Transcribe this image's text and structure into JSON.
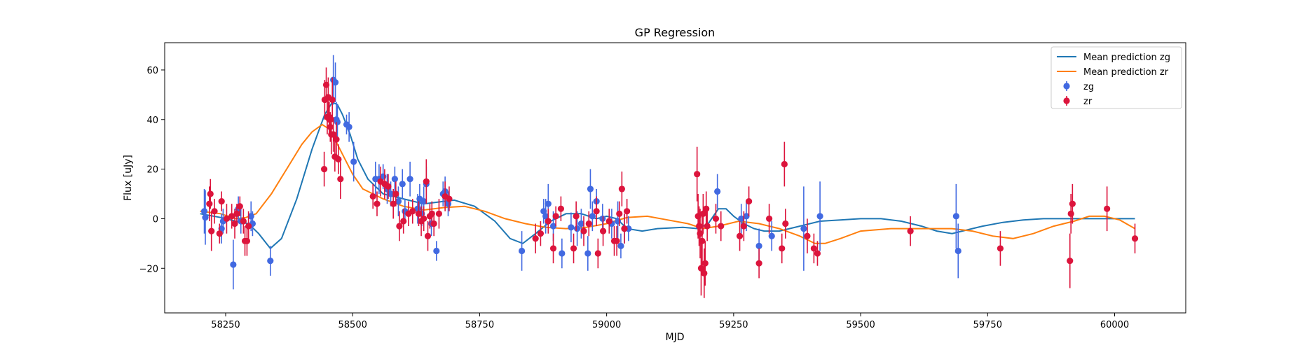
{
  "chart_data": {
    "type": "scatter",
    "title": "GP Regression",
    "xlabel": "MJD",
    "ylabel": "Flux [uJy]",
    "xlim": [
      58130,
      60140
    ],
    "ylim": [
      -38,
      71
    ],
    "xticks": [
      58250,
      58500,
      58750,
      59000,
      59250,
      59500,
      59750,
      60000
    ],
    "yticks": [
      -20,
      0,
      20,
      40,
      60
    ],
    "grid": false,
    "legend_position": "top-right",
    "colors": {
      "zg_line": "#1f77b4",
      "zr_line": "#ff7f0e",
      "zg_points": "#4169e1",
      "zr_points": "#dc143c"
    },
    "legend": [
      {
        "label": "Mean prediction zg",
        "kind": "line",
        "color": "#1f77b4"
      },
      {
        "label": "Mean prediction zr",
        "kind": "line",
        "color": "#ff7f0e"
      },
      {
        "label": "zg",
        "kind": "errorbar",
        "color": "#4169e1"
      },
      {
        "label": "zr",
        "kind": "errorbar",
        "color": "#dc143c"
      }
    ],
    "series": [
      {
        "name": "Mean prediction zg",
        "kind": "line",
        "color": "#1f77b4",
        "x": [
          58200,
          58240,
          58270,
          58295,
          58315,
          58338,
          58360,
          58390,
          58420,
          58445,
          58460,
          58470,
          58480,
          58495,
          58510,
          58530,
          58560,
          58600,
          58640,
          58680,
          58700,
          58740,
          58780,
          58810,
          58835,
          58860,
          58890,
          58920,
          58950,
          58980,
          59000,
          59020,
          59040,
          59070,
          59100,
          59150,
          59180,
          59200,
          59220,
          59235,
          59250,
          59270,
          59290,
          59310,
          59340,
          59380,
          59420,
          59460,
          59500,
          59540,
          59580,
          59620,
          59650,
          59680,
          59700,
          59740,
          59780,
          59820,
          59860,
          59900,
          59950,
          60000,
          60040
        ],
        "y": [
          2,
          0.5,
          -1,
          -2,
          -6,
          -12,
          -8,
          8,
          28,
          42,
          47,
          46,
          42,
          34,
          24,
          16,
          10,
          8,
          6,
          7,
          7.5,
          5,
          -1,
          -8,
          -10,
          -6,
          -1,
          2,
          2,
          0,
          1,
          0,
          -4,
          -5,
          -4,
          -3.5,
          -4,
          -2,
          4,
          4,
          1,
          -2,
          -4,
          -5,
          -5,
          -3,
          -1,
          -0.5,
          0,
          0,
          -1,
          -3,
          -5,
          -6,
          -5,
          -3,
          -1.5,
          -0.5,
          0,
          0,
          0,
          0,
          0
        ]
      },
      {
        "name": "Mean prediction zr",
        "kind": "line",
        "color": "#ff7f0e",
        "x": [
          58200,
          58240,
          58270,
          58290,
          58310,
          58340,
          58370,
          58400,
          58420,
          58440,
          58455,
          58470,
          58485,
          58500,
          58520,
          58560,
          58600,
          58640,
          58680,
          58720,
          58760,
          58800,
          58840,
          58880,
          58920,
          58960,
          59000,
          59040,
          59080,
          59120,
          59160,
          59190,
          59220,
          59260,
          59300,
          59340,
          59380,
          59410,
          59430,
          59460,
          59500,
          59560,
          59620,
          59680,
          59720,
          59760,
          59800,
          59840,
          59880,
          59920,
          59950,
          59980,
          60010,
          60040
        ],
        "y": [
          3,
          2,
          0,
          0.5,
          2,
          10,
          20,
          30,
          35,
          38,
          36,
          30,
          24,
          18,
          12,
          8,
          5,
          3.5,
          4.5,
          5,
          3,
          0,
          -2,
          -3.5,
          -4,
          -3.5,
          -2,
          0.5,
          1,
          -0.5,
          -2,
          -4,
          -3,
          -1,
          -2,
          -4,
          -7,
          -10,
          -10,
          -8,
          -5,
          -4,
          -4,
          -4,
          -5,
          -7,
          -8,
          -6,
          -3,
          -1,
          1,
          1,
          -0.5,
          -4
        ]
      },
      {
        "name": "zg",
        "kind": "errorbar",
        "color": "#4169e1",
        "points": [
          [
            58208,
            3,
            9
          ],
          [
            58210,
            0.5,
            11
          ],
          [
            58242,
            -4,
            6
          ],
          [
            58245,
            -1,
            5
          ],
          [
            58265,
            -18.5,
            10
          ],
          [
            58275,
            4,
            5
          ],
          [
            58280,
            -1,
            5
          ],
          [
            58300,
            1,
            6
          ],
          [
            58303,
            -2,
            5
          ],
          [
            58338,
            -17,
            6
          ],
          [
            58462,
            56,
            10
          ],
          [
            58466,
            55,
            8
          ],
          [
            58468,
            40,
            7
          ],
          [
            58470,
            39,
            7
          ],
          [
            58488,
            38,
            4
          ],
          [
            58493,
            37,
            6
          ],
          [
            58502,
            23,
            8
          ],
          [
            58545,
            16,
            7
          ],
          [
            58552,
            16,
            6
          ],
          [
            58560,
            17,
            5
          ],
          [
            58568,
            12,
            6
          ],
          [
            58575,
            10,
            5
          ],
          [
            58583,
            16,
            5
          ],
          [
            58590,
            7,
            6
          ],
          [
            58598,
            14,
            6
          ],
          [
            58603,
            3,
            5
          ],
          [
            58613,
            16,
            7
          ],
          [
            58628,
            4,
            6
          ],
          [
            58632,
            8,
            6
          ],
          [
            58636,
            2,
            5
          ],
          [
            58640,
            7,
            6
          ],
          [
            58645,
            14,
            7
          ],
          [
            58655,
            -2,
            5
          ],
          [
            58665,
            -13,
            4
          ],
          [
            58678,
            10,
            5
          ],
          [
            58682,
            11,
            6
          ],
          [
            58688,
            6,
            5
          ],
          [
            58833,
            -13,
            8
          ],
          [
            58876,
            3,
            5
          ],
          [
            58880,
            1,
            7
          ],
          [
            58885,
            6,
            8
          ],
          [
            58895,
            -3,
            6
          ],
          [
            58912,
            -14,
            6
          ],
          [
            58930,
            -3.5,
            6
          ],
          [
            58942,
            -4,
            7
          ],
          [
            58950,
            -2,
            6
          ],
          [
            58963,
            -14,
            7
          ],
          [
            58968,
            12,
            8
          ],
          [
            58972,
            1,
            6
          ],
          [
            58980,
            7,
            5
          ],
          [
            58992,
            0,
            6
          ],
          [
            59010,
            -2,
            6
          ],
          [
            59022,
            -1,
            8
          ],
          [
            59028,
            -11,
            5
          ],
          [
            59035,
            -4,
            6
          ],
          [
            59043,
            -4,
            5
          ],
          [
            59218,
            11,
            7
          ],
          [
            59265,
            0,
            6
          ],
          [
            59275,
            1,
            6
          ],
          [
            59300,
            -11,
            7
          ],
          [
            59325,
            -7,
            6
          ],
          [
            59388,
            -4,
            17
          ],
          [
            59420,
            1,
            14
          ],
          [
            59688,
            1,
            13
          ],
          [
            59692,
            -13,
            11
          ]
        ]
      },
      {
        "name": "zr",
        "kind": "errorbar",
        "color": "#dc143c",
        "points": [
          [
            58218,
            6,
            7
          ],
          [
            58220,
            10,
            6
          ],
          [
            58222,
            -5,
            8
          ],
          [
            58228,
            3,
            5
          ],
          [
            58238,
            -6,
            4
          ],
          [
            58242,
            7,
            4
          ],
          [
            58252,
            0,
            6
          ],
          [
            58262,
            1,
            5
          ],
          [
            58268,
            -2,
            6
          ],
          [
            58272,
            2,
            4
          ],
          [
            58278,
            5,
            4
          ],
          [
            58285,
            -1,
            5
          ],
          [
            58288,
            -9,
            6
          ],
          [
            58292,
            -9,
            6
          ],
          [
            58295,
            -3,
            6
          ],
          [
            58445,
            48,
            8
          ],
          [
            58448,
            54,
            7
          ],
          [
            58450,
            41,
            7
          ],
          [
            58452,
            49,
            8
          ],
          [
            58454,
            40,
            7
          ],
          [
            58456,
            37,
            6
          ],
          [
            58458,
            34,
            8
          ],
          [
            58460,
            48,
            9
          ],
          [
            58462,
            34,
            7
          ],
          [
            58444,
            20,
            7
          ],
          [
            58465,
            25,
            6
          ],
          [
            58468,
            32,
            7
          ],
          [
            58472,
            24,
            6
          ],
          [
            58476,
            16,
            8
          ],
          [
            58540,
            9,
            5
          ],
          [
            58548,
            6,
            5
          ],
          [
            58555,
            15,
            6
          ],
          [
            58563,
            14,
            6
          ],
          [
            58570,
            13,
            5
          ],
          [
            58580,
            6,
            6
          ],
          [
            58585,
            10,
            5
          ],
          [
            58592,
            -3,
            6
          ],
          [
            58600,
            -1,
            5
          ],
          [
            58610,
            2,
            5
          ],
          [
            58618,
            3,
            5
          ],
          [
            58630,
            2,
            5
          ],
          [
            58635,
            -1,
            6
          ],
          [
            58640,
            0,
            5
          ],
          [
            58645,
            15,
            9
          ],
          [
            58648,
            -7,
            6
          ],
          [
            58652,
            1,
            5
          ],
          [
            58656,
            2,
            5
          ],
          [
            58660,
            -2,
            5
          ],
          [
            58670,
            2,
            6
          ],
          [
            58682,
            9,
            6
          ],
          [
            58690,
            8,
            5
          ],
          [
            58860,
            -8,
            6
          ],
          [
            58870,
            -6,
            5
          ],
          [
            58885,
            -1,
            5
          ],
          [
            58895,
            -12,
            6
          ],
          [
            58900,
            1,
            4
          ],
          [
            58910,
            4,
            5
          ],
          [
            58935,
            -12,
            6
          ],
          [
            58940,
            1,
            6
          ],
          [
            58955,
            -5,
            6
          ],
          [
            58965,
            -2,
            5
          ],
          [
            58980,
            3,
            6
          ],
          [
            58983,
            -14,
            6
          ],
          [
            58993,
            -5,
            6
          ],
          [
            59005,
            -1,
            5
          ],
          [
            59015,
            -9,
            6
          ],
          [
            59020,
            -9,
            6
          ],
          [
            59025,
            2,
            5
          ],
          [
            59030,
            12,
            7
          ],
          [
            59035,
            -4,
            6
          ],
          [
            59040,
            3,
            5
          ],
          [
            59178,
            18,
            11
          ],
          [
            59180,
            1,
            9
          ],
          [
            59182,
            -3,
            8
          ],
          [
            59184,
            -6,
            10
          ],
          [
            59186,
            -20,
            11
          ],
          [
            59188,
            -9,
            10
          ],
          [
            59190,
            2,
            8
          ],
          [
            59192,
            -22,
            10
          ],
          [
            59194,
            -18,
            9
          ],
          [
            59196,
            4,
            7
          ],
          [
            59198,
            -3,
            6
          ],
          [
            59215,
            0,
            6
          ],
          [
            59225,
            -3,
            6
          ],
          [
            59262,
            -7,
            6
          ],
          [
            59270,
            -3,
            6
          ],
          [
            59280,
            7,
            6
          ],
          [
            59300,
            -18,
            6
          ],
          [
            59320,
            0,
            6
          ],
          [
            59345,
            -12,
            6
          ],
          [
            59350,
            22,
            9
          ],
          [
            59352,
            -2,
            6
          ],
          [
            59395,
            -7,
            7
          ],
          [
            59408,
            -12,
            6
          ],
          [
            59415,
            -14,
            5
          ],
          [
            59598,
            -5,
            6
          ],
          [
            59775,
            -12,
            7
          ],
          [
            59912,
            -17,
            11
          ],
          [
            59914,
            2,
            8
          ],
          [
            59917,
            6,
            8
          ],
          [
            59985,
            4,
            9
          ],
          [
            60040,
            -8,
            6
          ]
        ]
      }
    ]
  }
}
